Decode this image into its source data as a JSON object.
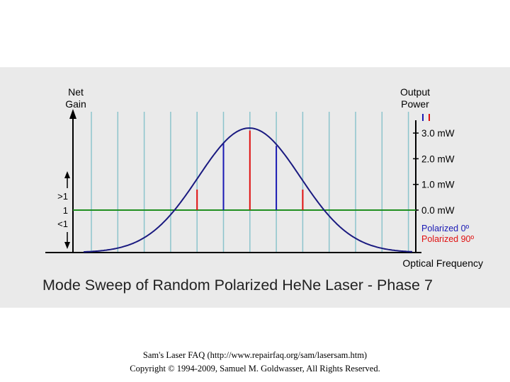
{
  "diagram": {
    "title": "Mode Sweep of Random Polarized HeNe Laser - Phase 7",
    "left_axis": {
      "line1": "Net",
      "line2": "Gain",
      "tick_gt1": ">1",
      "tick_1": "1",
      "tick_lt1": "<1"
    },
    "right_axis": {
      "line1": "Output",
      "line2": "Power",
      "ticks": [
        "3.0 mW",
        "2.0 mW",
        "1.0 mW",
        "0.0 mW"
      ]
    },
    "x_axis_label": "Optical Frequency",
    "legend": [
      {
        "label": "Polarized 0º",
        "color": "#1a1ab4"
      },
      {
        "label": "Polarized 90º",
        "color": "#e01010"
      }
    ],
    "colors": {
      "background": "#eaeaea",
      "mode_grid": "#8cc4cc",
      "gain_line": "#1f8f1f",
      "curve": "#1a1a80",
      "polarized_0": "#1a1ab4",
      "polarized_90": "#e01010"
    },
    "lasing_modes": [
      {
        "power_mw": 0.8,
        "polarization": "90"
      },
      {
        "power_mw": 2.6,
        "polarization": "0"
      },
      {
        "power_mw": 3.1,
        "polarization": "90"
      },
      {
        "power_mw": 2.5,
        "polarization": "0"
      },
      {
        "power_mw": 0.8,
        "polarization": "90"
      }
    ]
  },
  "footer": {
    "line1": "Sam's Laser FAQ (http://www.repairfaq.org/sam/lasersam.htm)",
    "line2": "Copyright © 1994-2009, Samuel M. Goldwasser, All Rights Reserved."
  }
}
